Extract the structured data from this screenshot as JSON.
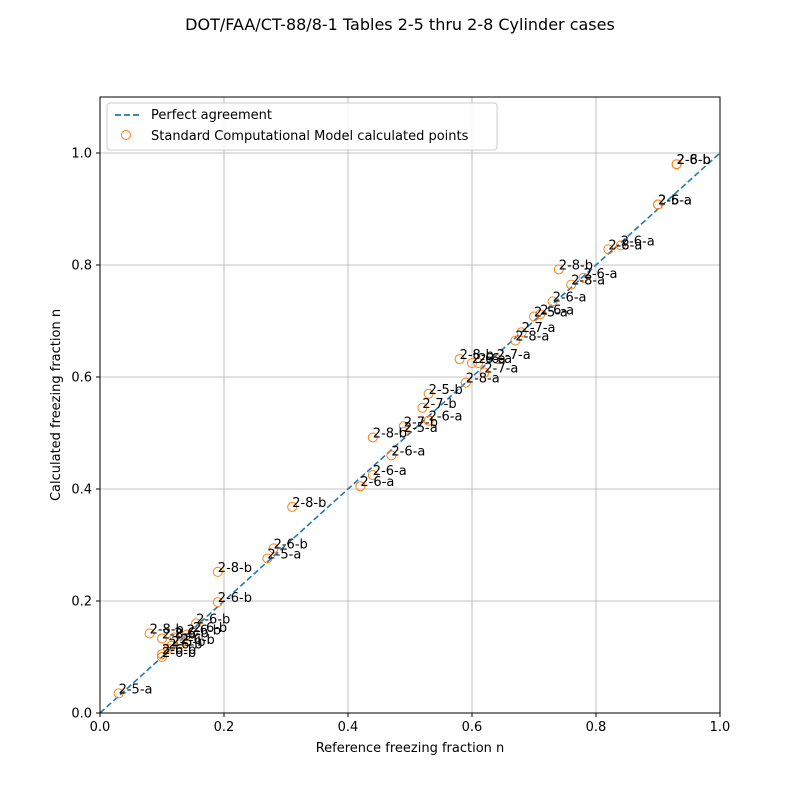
{
  "chart_data": {
    "type": "scatter",
    "title": "DOT/FAA/CT-88/8-1 Tables 2-5 thru 2-8 Cylinder cases",
    "xlabel": "Reference freezing fraction n",
    "ylabel": "Calculated freezing fraction n",
    "xlim": [
      0.0,
      1.0
    ],
    "ylim": [
      0.0,
      1.1
    ],
    "xticks": [
      0.0,
      0.2,
      0.4,
      0.6,
      0.8,
      1.0
    ],
    "yticks": [
      0.0,
      0.2,
      0.4,
      0.6,
      0.8,
      1.0
    ],
    "xtick_labels": [
      "0.0",
      "0.2",
      "0.4",
      "0.6",
      "0.8",
      "1.0"
    ],
    "ytick_labels": [
      "0.0",
      "0.2",
      "0.4",
      "0.6",
      "0.8",
      "1.0"
    ],
    "grid": true,
    "legend_position": "upper-left",
    "colors": {
      "line": "#1f77b4",
      "points": "#ff7f0e"
    },
    "series": [
      {
        "name": "Perfect agreement",
        "kind": "line",
        "style": "dashed",
        "x": [
          0.0,
          1.0
        ],
        "y": [
          0.0,
          1.0
        ]
      },
      {
        "name": "Standard Computational Model calculated points",
        "kind": "scatter",
        "marker": "open-circle",
        "points": [
          {
            "x": 0.03,
            "y": 0.035,
            "label": "2-5-a"
          },
          {
            "x": 0.08,
            "y": 0.142,
            "label": "2-8-b"
          },
          {
            "x": 0.1,
            "y": 0.133,
            "label": "2-8-b"
          },
          {
            "x": 0.1,
            "y": 0.105,
            "label": "2-6-b"
          },
          {
            "x": 0.1,
            "y": 0.1,
            "label": "2-6-b"
          },
          {
            "x": 0.11,
            "y": 0.115,
            "label": "2-6-b"
          },
          {
            "x": 0.115,
            "y": 0.12,
            "label": "2-5-b"
          },
          {
            "x": 0.12,
            "y": 0.135,
            "label": "2-6-b"
          },
          {
            "x": 0.13,
            "y": 0.123,
            "label": "2-6-b"
          },
          {
            "x": 0.14,
            "y": 0.14,
            "label": "2-6-b"
          },
          {
            "x": 0.15,
            "y": 0.145,
            "label": "2-6-b"
          },
          {
            "x": 0.155,
            "y": 0.16,
            "label": "2-6-b"
          },
          {
            "x": 0.19,
            "y": 0.198,
            "label": "2-6-b"
          },
          {
            "x": 0.19,
            "y": 0.252,
            "label": "2-8-b"
          },
          {
            "x": 0.27,
            "y": 0.276,
            "label": "2-5-a"
          },
          {
            "x": 0.28,
            "y": 0.294,
            "label": "2-6-b"
          },
          {
            "x": 0.31,
            "y": 0.368,
            "label": "2-8-b"
          },
          {
            "x": 0.42,
            "y": 0.405,
            "label": "2-6-a"
          },
          {
            "x": 0.44,
            "y": 0.425,
            "label": "2-6-a"
          },
          {
            "x": 0.47,
            "y": 0.46,
            "label": "2-6-a"
          },
          {
            "x": 0.44,
            "y": 0.492,
            "label": "2-8-b"
          },
          {
            "x": 0.49,
            "y": 0.502,
            "label": "2-5-a"
          },
          {
            "x": 0.49,
            "y": 0.512,
            "label": "2-7-b"
          },
          {
            "x": 0.52,
            "y": 0.545,
            "label": "2-7-b"
          },
          {
            "x": 0.53,
            "y": 0.522,
            "label": "2-6-a"
          },
          {
            "x": 0.53,
            "y": 0.57,
            "label": "2-5-b"
          },
          {
            "x": 0.58,
            "y": 0.632,
            "label": "2-8-b"
          },
          {
            "x": 0.59,
            "y": 0.59,
            "label": "2-8-a"
          },
          {
            "x": 0.6,
            "y": 0.625,
            "label": "2-6-a"
          },
          {
            "x": 0.61,
            "y": 0.625,
            "label": "2-6-a"
          },
          {
            "x": 0.62,
            "y": 0.608,
            "label": "2-7-a"
          },
          {
            "x": 0.64,
            "y": 0.632,
            "label": "2-7-a"
          },
          {
            "x": 0.67,
            "y": 0.665,
            "label": "2-8-a"
          },
          {
            "x": 0.68,
            "y": 0.68,
            "label": "2-7-a"
          },
          {
            "x": 0.7,
            "y": 0.708,
            "label": "2-5-a"
          },
          {
            "x": 0.71,
            "y": 0.712,
            "label": "2-6-a"
          },
          {
            "x": 0.73,
            "y": 0.735,
            "label": "2-6-a"
          },
          {
            "x": 0.74,
            "y": 0.792,
            "label": "2-8-b"
          },
          {
            "x": 0.76,
            "y": 0.765,
            "label": "2-8-a"
          },
          {
            "x": 0.78,
            "y": 0.777,
            "label": "2-6-a"
          },
          {
            "x": 0.82,
            "y": 0.828,
            "label": "2-8-a"
          },
          {
            "x": 0.84,
            "y": 0.835,
            "label": "2-6-a"
          },
          {
            "x": 0.9,
            "y": 0.908,
            "label": "2-6-a"
          },
          {
            "x": 0.9,
            "y": 0.908,
            "label": "2-5-a"
          },
          {
            "x": 0.93,
            "y": 0.98,
            "label": "2-8-b"
          },
          {
            "x": 0.93,
            "y": 0.98,
            "label": "2-6-b"
          }
        ]
      }
    ]
  }
}
